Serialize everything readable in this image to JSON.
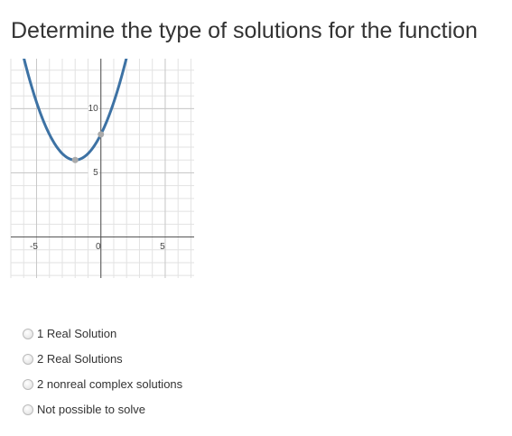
{
  "title": "Determine the type of solutions for the function",
  "graph": {
    "xlim": [
      -7,
      7.25
    ],
    "ylim": [
      -3.2,
      13.9
    ],
    "xticks": [
      -5,
      0,
      5
    ],
    "yticks": [
      5,
      10
    ],
    "grid": true,
    "points": {
      "x": [
        -2,
        0
      ],
      "y": [
        6,
        8
      ]
    },
    "curve_color": "#3d72a4"
  },
  "options": [
    "1 Real Solution",
    "2 Real Solutions",
    "2 nonreal complex solutions",
    "Not possible to solve"
  ]
}
